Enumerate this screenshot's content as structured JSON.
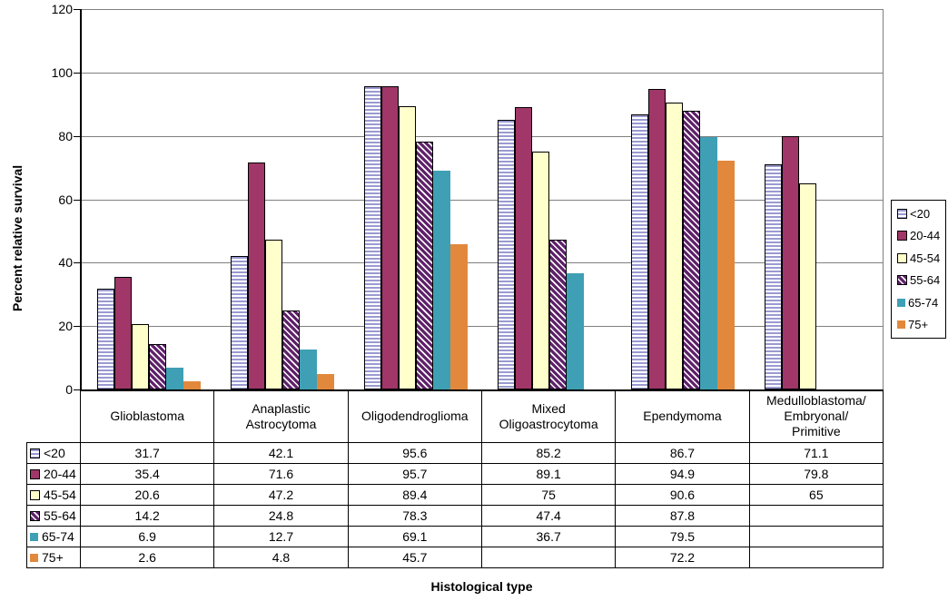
{
  "colors": {
    "background": "#ffffff",
    "gridline": "#808080",
    "axis": "#000000",
    "table_border": "#000000"
  },
  "chart_data": {
    "type": "bar",
    "title": "",
    "xlabel": "Histological type",
    "ylabel": "Percent relative survival",
    "ylim": [
      0,
      120
    ],
    "yticks": [
      0,
      20,
      40,
      60,
      80,
      100,
      120
    ],
    "grid": true,
    "legend_position": "right",
    "data_table_shown": true,
    "categories": [
      "Glioblastoma",
      "Anaplastic\nAstrocytoma",
      "Oligodendroglioma",
      "Mixed\nOligoastrocytoma",
      "Ependymoma",
      "Medulloblastoma/\nEmbryonal/\nPrimitive"
    ],
    "series": [
      {
        "name": "<20",
        "pattern": "hlines",
        "color": "#9A9AD2",
        "border": "#000000",
        "values": [
          31.7,
          42.1,
          95.6,
          85.2,
          86.7,
          71.1
        ]
      },
      {
        "name": "20-44",
        "pattern": "solid",
        "color": "#A03768",
        "border": "#000000",
        "values": [
          35.4,
          71.6,
          95.7,
          89.1,
          94.9,
          79.8
        ]
      },
      {
        "name": "45-54",
        "pattern": "solid",
        "color": "#FFFFCC",
        "border": "#000000",
        "values": [
          20.6,
          47.2,
          89.4,
          75,
          90.6,
          65
        ]
      },
      {
        "name": "55-64",
        "pattern": "diag",
        "color": "#5E2169",
        "border": "#000000",
        "values": [
          14.2,
          24.8,
          78.3,
          47.4,
          87.8,
          null
        ]
      },
      {
        "name": "65-74",
        "pattern": "solid",
        "color": "#3F9FB4",
        "border": null,
        "values": [
          6.9,
          12.7,
          69.1,
          36.7,
          79.5,
          null
        ]
      },
      {
        "name": "75+",
        "pattern": "solid",
        "color": "#E2883C",
        "border": null,
        "values": [
          2.6,
          4.8,
          45.7,
          null,
          72.2,
          null
        ]
      }
    ]
  }
}
